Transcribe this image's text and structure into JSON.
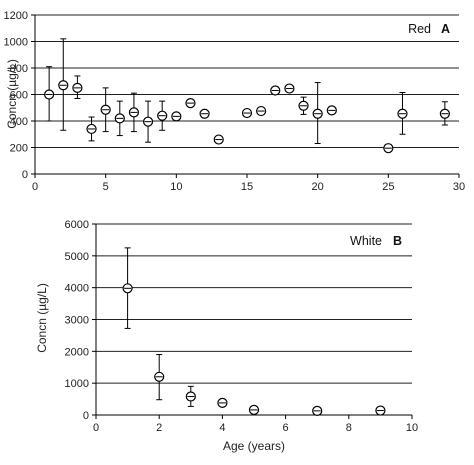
{
  "chart_data": [
    {
      "type": "scatter",
      "panel_name": "Red",
      "panel_letter": "A",
      "ylabel": "Concn (µg/L)",
      "xlabel": "",
      "xlim": [
        0,
        30
      ],
      "ylim": [
        0,
        1200
      ],
      "xticks": [
        "0",
        "5",
        "10",
        "15",
        "20",
        "25",
        "30"
      ],
      "yticks": [
        "0",
        "200",
        "400",
        "600",
        "800",
        "1000",
        "1200"
      ],
      "grid": "horizontal",
      "points": [
        {
          "x": 1,
          "y": 600,
          "lo": 400,
          "hi": 810
        },
        {
          "x": 2,
          "y": 670,
          "lo": 330,
          "hi": 1020
        },
        {
          "x": 3,
          "y": 650,
          "lo": 570,
          "hi": 740
        },
        {
          "x": 4,
          "y": 340,
          "lo": 250,
          "hi": 430
        },
        {
          "x": 5,
          "y": 485,
          "lo": 320,
          "hi": 650
        },
        {
          "x": 6,
          "y": 420,
          "lo": 290,
          "hi": 550
        },
        {
          "x": 7,
          "y": 465,
          "lo": 320,
          "hi": 610
        },
        {
          "x": 8,
          "y": 395,
          "lo": 240,
          "hi": 550
        },
        {
          "x": 9,
          "y": 440,
          "lo": 330,
          "hi": 550
        },
        {
          "x": 10,
          "y": 435
        },
        {
          "x": 11,
          "y": 535
        },
        {
          "x": 12,
          "y": 455
        },
        {
          "x": 13,
          "y": 260
        },
        {
          "x": 15,
          "y": 460
        },
        {
          "x": 16,
          "y": 475
        },
        {
          "x": 17,
          "y": 630
        },
        {
          "x": 18,
          "y": 645
        },
        {
          "x": 19,
          "y": 515,
          "lo": 450,
          "hi": 580
        },
        {
          "x": 20,
          "y": 455,
          "lo": 230,
          "hi": 690
        },
        {
          "x": 21,
          "y": 480
        },
        {
          "x": 25,
          "y": 195
        },
        {
          "x": 26,
          "y": 455,
          "lo": 300,
          "hi": 615
        },
        {
          "x": 29,
          "y": 455,
          "lo": 370,
          "hi": 545
        }
      ]
    },
    {
      "type": "scatter",
      "panel_name": "White",
      "panel_letter": "B",
      "ylabel": "Concn (µg/L)",
      "xlabel": "Age (years)",
      "xlim": [
        0,
        10
      ],
      "ylim": [
        0,
        6000
      ],
      "xticks": [
        "0",
        "2",
        "4",
        "6",
        "8",
        "10"
      ],
      "yticks": [
        "0",
        "1000",
        "2000",
        "3000",
        "4000",
        "5000",
        "6000"
      ],
      "grid": "horizontal",
      "points": [
        {
          "x": 1,
          "y": 3980,
          "lo": 2720,
          "hi": 5250
        },
        {
          "x": 2,
          "y": 1200,
          "lo": 480,
          "hi": 1900
        },
        {
          "x": 3,
          "y": 580,
          "lo": 270,
          "hi": 900
        },
        {
          "x": 4,
          "y": 380
        },
        {
          "x": 5,
          "y": 160
        },
        {
          "x": 7,
          "y": 130
        },
        {
          "x": 9,
          "y": 140
        }
      ]
    }
  ]
}
